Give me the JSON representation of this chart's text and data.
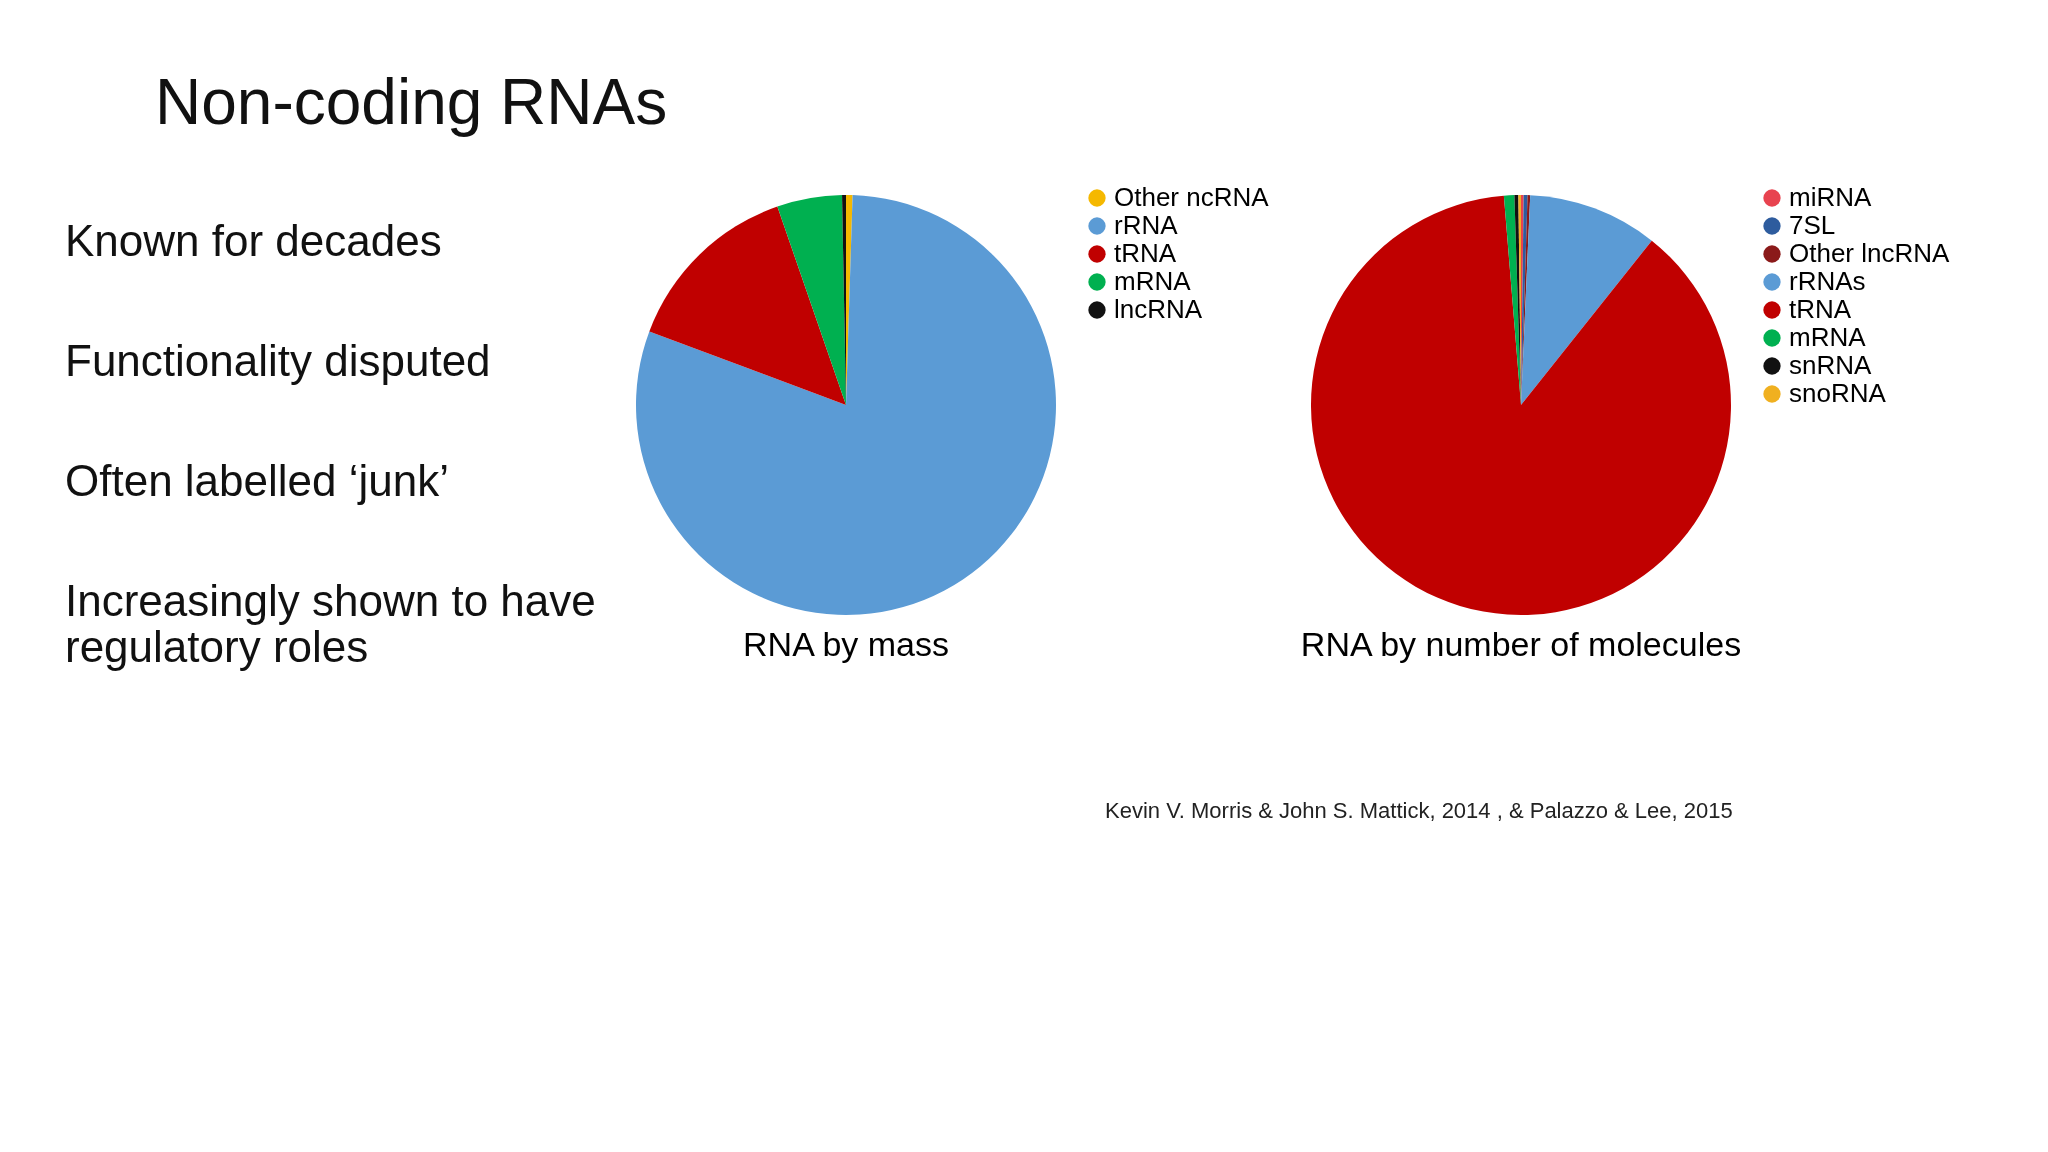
{
  "chart_data": [
    {
      "type": "other",
      "title": "Non-coding RNAs",
      "annotations": [
        "Known for decades",
        "Functionality disputed",
        "Often labelled ‘junk’",
        "Increasingly shown to have regulatory roles",
        "Kevin V. Morris & John S. Mattick, 2014 , & Palazzo & Lee, 2015"
      ]
    },
    {
      "type": "pie",
      "title": "RNA by mass",
      "legend": "right",
      "categories": [
        "Other ncRNA",
        "rRNA",
        "tRNA",
        "mRNA",
        "lncRNA"
      ],
      "values": [
        0.5,
        80.2,
        14,
        5,
        0.3
      ],
      "colors": [
        "#f5b800",
        "#5b9bd5",
        "#c00000",
        "#00b050",
        "#111111"
      ]
    },
    {
      "type": "pie",
      "title": "RNA by number of molecules",
      "legend": "right",
      "categories": [
        "miRNA",
        "7SL",
        "Other lncRNA",
        "rRNAs",
        "tRNA",
        "mRNA",
        "snRNA",
        "snoRNA"
      ],
      "values": [
        0.2,
        0.3,
        0.2,
        10,
        88,
        0.8,
        0.3,
        0.2
      ],
      "colors": [
        "#e8434f",
        "#2e5c9e",
        "#8b1a1a",
        "#5b9bd5",
        "#c00000",
        "#00b050",
        "#111111",
        "#f0b020"
      ]
    }
  ]
}
